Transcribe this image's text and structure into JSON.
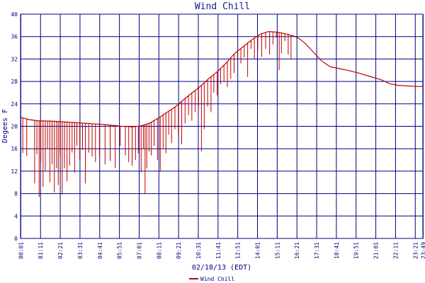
{
  "colors": {
    "grid": "#000080",
    "series": "#c00000",
    "text": "#000080",
    "title": "#1a1a8c"
  },
  "chart_data": {
    "type": "line",
    "title": "Wind Chill",
    "xlabel": "02/18/13 (EDT)",
    "ylabel": "Degees F",
    "ylim": [
      0,
      40
    ],
    "xlim": [
      0,
      1428
    ],
    "yticks": [
      "0",
      "4",
      "8",
      "12",
      "16",
      "20",
      "24",
      "28",
      "32",
      "36",
      "40"
    ],
    "xticks": [
      "00:01",
      "01:11",
      "02:21",
      "03:31",
      "04:41",
      "05:51",
      "07:01",
      "08:11",
      "09:21",
      "10:31",
      "11:41",
      "12:51",
      "14:01",
      "15:11",
      "16:21",
      "17:31",
      "18:41",
      "19:51",
      "21:01",
      "22:11",
      "23:21",
      "23:49"
    ],
    "x_unit": "minutes after 00:00",
    "grid": true,
    "legend_position": "bottom-center",
    "series": [
      {
        "name": "Wind Chill",
        "baseline": [
          [
            0,
            21.6
          ],
          [
            30,
            21.2
          ],
          [
            60,
            21.0
          ],
          [
            120,
            20.9
          ],
          [
            180,
            20.7
          ],
          [
            240,
            20.5
          ],
          [
            300,
            20.3
          ],
          [
            360,
            20.0
          ],
          [
            400,
            19.9
          ],
          [
            430,
            20.1
          ],
          [
            460,
            20.6
          ],
          [
            490,
            21.5
          ],
          [
            520,
            22.5
          ],
          [
            550,
            23.5
          ],
          [
            580,
            24.8
          ],
          [
            610,
            26.0
          ],
          [
            640,
            27.2
          ],
          [
            670,
            28.6
          ],
          [
            700,
            29.8
          ],
          [
            730,
            31.3
          ],
          [
            760,
            33.0
          ],
          [
            790,
            34.2
          ],
          [
            820,
            35.4
          ],
          [
            850,
            36.4
          ],
          [
            880,
            36.9
          ],
          [
            910,
            36.8
          ],
          [
            940,
            36.5
          ],
          [
            970,
            36.1
          ],
          [
            990,
            35.6
          ],
          [
            1010,
            34.8
          ],
          [
            1040,
            33.2
          ],
          [
            1070,
            31.6
          ],
          [
            1100,
            30.6
          ],
          [
            1130,
            30.3
          ],
          [
            1160,
            30.0
          ],
          [
            1200,
            29.5
          ],
          [
            1240,
            28.9
          ],
          [
            1280,
            28.3
          ],
          [
            1310,
            27.6
          ],
          [
            1340,
            27.3
          ],
          [
            1370,
            27.2
          ],
          [
            1400,
            27.1
          ],
          [
            1428,
            27.1
          ]
        ],
        "dips": [
          [
            8,
            15.2
          ],
          [
            22,
            14.7
          ],
          [
            50,
            9.8
          ],
          [
            58,
            15.0
          ],
          [
            66,
            7.4
          ],
          [
            72,
            13.5
          ],
          [
            80,
            9.2
          ],
          [
            88,
            12.0
          ],
          [
            96,
            16.0
          ],
          [
            104,
            10.0
          ],
          [
            112,
            13.2
          ],
          [
            120,
            8.2
          ],
          [
            128,
            12.5
          ],
          [
            134,
            9.5
          ],
          [
            140,
            14.8
          ],
          [
            148,
            7.8
          ],
          [
            156,
            12.5
          ],
          [
            165,
            10.2
          ],
          [
            174,
            13.0
          ],
          [
            183,
            15.3
          ],
          [
            192,
            11.7
          ],
          [
            200,
            16.5
          ],
          [
            210,
            14.0
          ],
          [
            220,
            15.8
          ],
          [
            230,
            9.8
          ],
          [
            242,
            15.3
          ],
          [
            254,
            14.6
          ],
          [
            266,
            13.6
          ],
          [
            280,
            14.8
          ],
          [
            300,
            13.2
          ],
          [
            318,
            13.8
          ],
          [
            336,
            12.6
          ],
          [
            354,
            16.5
          ],
          [
            372,
            14.8
          ],
          [
            384,
            13.6
          ],
          [
            396,
            13.0
          ],
          [
            408,
            14.0
          ],
          [
            418,
            15.2
          ],
          [
            428,
            11.8
          ],
          [
            436,
            16.0
          ],
          [
            442,
            7.9
          ],
          [
            448,
            12.5
          ],
          [
            456,
            15.5
          ],
          [
            464,
            14.8
          ],
          [
            474,
            16.5
          ],
          [
            486,
            14.0
          ],
          [
            496,
            12.0
          ],
          [
            506,
            16.0
          ],
          [
            516,
            15.2
          ],
          [
            526,
            18.5
          ],
          [
            536,
            17.0
          ],
          [
            548,
            19.5
          ],
          [
            560,
            18.5
          ],
          [
            572,
            16.8
          ],
          [
            584,
            20.5
          ],
          [
            596,
            22.0
          ],
          [
            608,
            21.0
          ],
          [
            620,
            22.5
          ],
          [
            632,
            23.5
          ],
          [
            642,
            15.5
          ],
          [
            652,
            19.5
          ],
          [
            664,
            23.5
          ],
          [
            676,
            22.5
          ],
          [
            686,
            26.0
          ],
          [
            698,
            25.5
          ],
          [
            710,
            27.5
          ],
          [
            722,
            28.0
          ],
          [
            734,
            27.0
          ],
          [
            746,
            28.5
          ],
          [
            758,
            29.5
          ],
          [
            770,
            32.0
          ],
          [
            782,
            31.2
          ],
          [
            794,
            32.3
          ],
          [
            806,
            28.8
          ],
          [
            818,
            33.8
          ],
          [
            830,
            32.0
          ],
          [
            842,
            33.6
          ],
          [
            856,
            32.4
          ],
          [
            870,
            33.8
          ],
          [
            884,
            32.8
          ],
          [
            896,
            34.6
          ],
          [
            908,
            35.8
          ],
          [
            918,
            30.0
          ],
          [
            926,
            33.0
          ],
          [
            938,
            35.2
          ],
          [
            950,
            32.8
          ],
          [
            960,
            32.0
          ]
        ]
      }
    ]
  }
}
